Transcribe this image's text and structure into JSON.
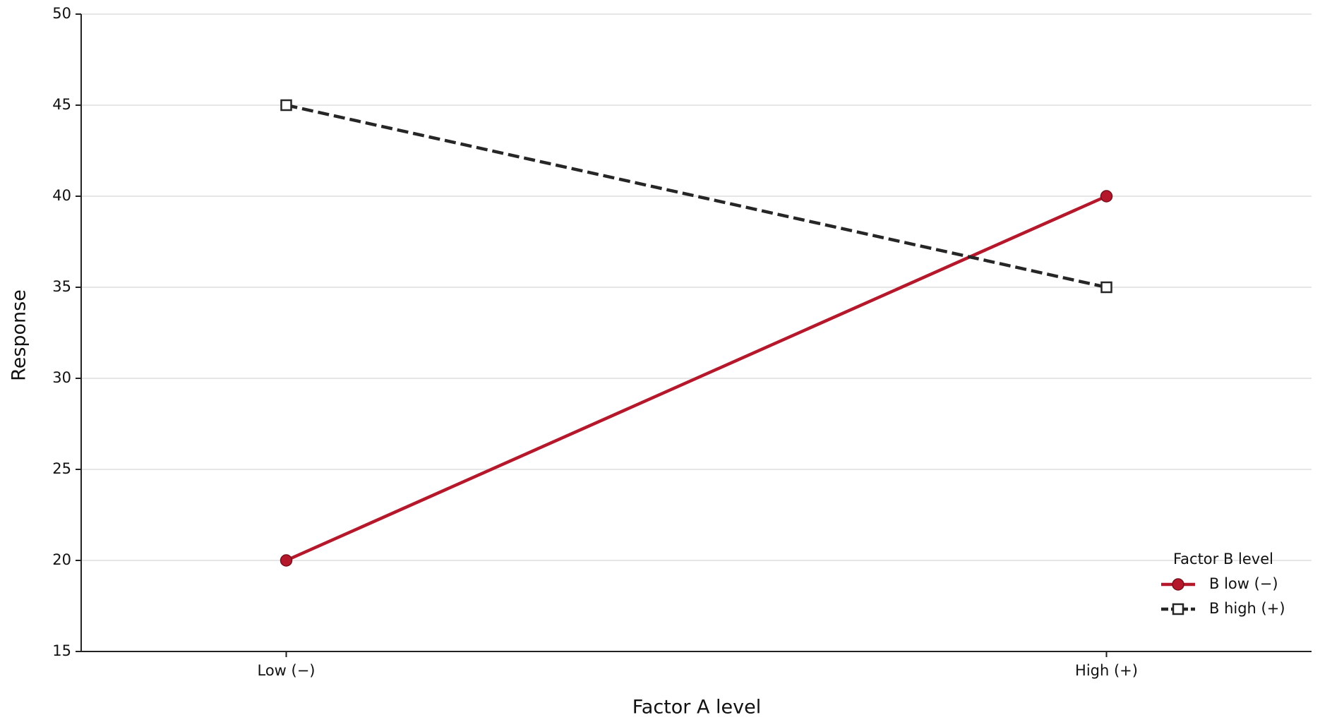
{
  "chart_data": {
    "type": "line",
    "x_label": "Factor A level",
    "y_label": "Response",
    "categories": [
      "Low (−)",
      "High (+)"
    ],
    "series": [
      {
        "name": "B low (−)",
        "color": "#b5172b",
        "marker": "circle",
        "linestyle": "solid",
        "values": [
          20,
          40
        ]
      },
      {
        "name": "B high (+)",
        "color": "#262626",
        "marker": "square",
        "linestyle": "dashed",
        "values": [
          45,
          35
        ]
      }
    ],
    "ylim": [
      15,
      50
    ],
    "yticks": [
      15,
      20,
      25,
      30,
      35,
      40,
      45,
      50
    ],
    "grid": true,
    "legend": {
      "title": "Factor B level",
      "corner": "lower right"
    }
  }
}
